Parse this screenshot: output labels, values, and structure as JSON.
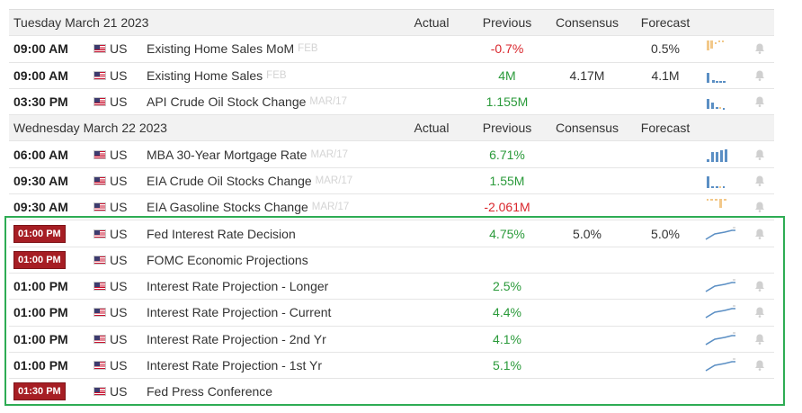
{
  "columns": {
    "actual": "Actual",
    "previous": "Previous",
    "consensus": "Consensus",
    "forecast": "Forecast"
  },
  "colors": {
    "highlight_border": "#2eac54",
    "positive": "#2a9a3a",
    "negative": "#d9262c",
    "badge": "#a61e24",
    "bars_light": "#f2c889",
    "bars_dark": "#5b8fc4"
  },
  "days": [
    {
      "label": "Tuesday March 21 2023",
      "events": [
        {
          "time": "09:00 AM",
          "badge": false,
          "currency": "US",
          "name": "Existing Home Sales MoM",
          "period": "FEB",
          "actual": "",
          "previous": "-0.7%",
          "previous_class": "neg",
          "consensus": "",
          "forecast": "0.5%",
          "chart_icon": "bar-mini-chart-icon",
          "bell": true
        },
        {
          "time": "09:00 AM",
          "badge": false,
          "currency": "US",
          "name": "Existing Home Sales",
          "period": "FEB",
          "actual": "",
          "previous": "4M",
          "previous_class": "pos",
          "consensus": "4.17M",
          "forecast": "4.1M",
          "chart_icon": "bar-mini-chart-icon",
          "bell": true
        },
        {
          "time": "03:30 PM",
          "badge": false,
          "currency": "US",
          "name": "API Crude Oil Stock Change",
          "period": "MAR/17",
          "actual": "",
          "previous": "1.155M",
          "previous_class": "pos",
          "consensus": "",
          "forecast": "",
          "chart_icon": "bar-mini-chart-icon",
          "bell": true
        }
      ]
    },
    {
      "label": "Wednesday March 22 2023",
      "events": [
        {
          "time": "06:00 AM",
          "badge": false,
          "currency": "US",
          "name": "MBA 30-Year Mortgage Rate",
          "period": "MAR/17",
          "actual": "",
          "previous": "6.71%",
          "previous_class": "pos",
          "consensus": "",
          "forecast": "",
          "chart_icon": "bar-mini-chart-icon",
          "bell": true
        },
        {
          "time": "09:30 AM",
          "badge": false,
          "currency": "US",
          "name": "EIA Crude Oil Stocks Change",
          "period": "MAR/17",
          "actual": "",
          "previous": "1.55M",
          "previous_class": "pos",
          "consensus": "",
          "forecast": "",
          "chart_icon": "bar-mini-chart-icon",
          "bell": true
        },
        {
          "time": "09:30 AM",
          "badge": false,
          "currency": "US",
          "name": "EIA Gasoline Stocks Change",
          "period": "MAR/17",
          "actual": "",
          "previous": "-2.061M",
          "previous_class": "neg",
          "consensus": "",
          "forecast": "",
          "chart_icon": "bar-mini-chart-icon",
          "bell": true
        },
        {
          "time": "01:00 PM",
          "badge": true,
          "currency": "US",
          "name": "Fed Interest Rate Decision",
          "period": "",
          "actual": "",
          "previous": "4.75%",
          "previous_class": "pos",
          "consensus": "5.0%",
          "forecast": "5.0%",
          "chart_icon": "line-mini-chart-icon",
          "bell": true
        },
        {
          "time": "01:00 PM",
          "badge": true,
          "currency": "US",
          "name": "FOMC Economic Projections",
          "period": "",
          "actual": "",
          "previous": "",
          "previous_class": "",
          "consensus": "",
          "forecast": "",
          "chart_icon": "",
          "bell": false
        },
        {
          "time": "01:00 PM",
          "badge": false,
          "currency": "US",
          "name": "Interest Rate Projection - Longer",
          "period": "",
          "actual": "",
          "previous": "2.5%",
          "previous_class": "pos",
          "consensus": "",
          "forecast": "",
          "chart_icon": "line-mini-chart-icon",
          "bell": true
        },
        {
          "time": "01:00 PM",
          "badge": false,
          "currency": "US",
          "name": "Interest Rate Projection - Current",
          "period": "",
          "actual": "",
          "previous": "4.4%",
          "previous_class": "pos",
          "consensus": "",
          "forecast": "",
          "chart_icon": "line-mini-chart-icon",
          "bell": true
        },
        {
          "time": "01:00 PM",
          "badge": false,
          "currency": "US",
          "name": "Interest Rate Projection - 2nd Yr",
          "period": "",
          "actual": "",
          "previous": "4.1%",
          "previous_class": "pos",
          "consensus": "",
          "forecast": "",
          "chart_icon": "line-mini-chart-icon",
          "bell": true
        },
        {
          "time": "01:00 PM",
          "badge": false,
          "currency": "US",
          "name": "Interest Rate Projection - 1st Yr",
          "period": "",
          "actual": "",
          "previous": "5.1%",
          "previous_class": "pos",
          "consensus": "",
          "forecast": "",
          "chart_icon": "line-mini-chart-icon",
          "bell": true
        },
        {
          "time": "01:30 PM",
          "badge": true,
          "currency": "US",
          "name": "Fed Press Conference",
          "period": "",
          "actual": "",
          "previous": "",
          "previous_class": "",
          "consensus": "",
          "forecast": "",
          "chart_icon": "",
          "bell": false
        }
      ]
    }
  ]
}
